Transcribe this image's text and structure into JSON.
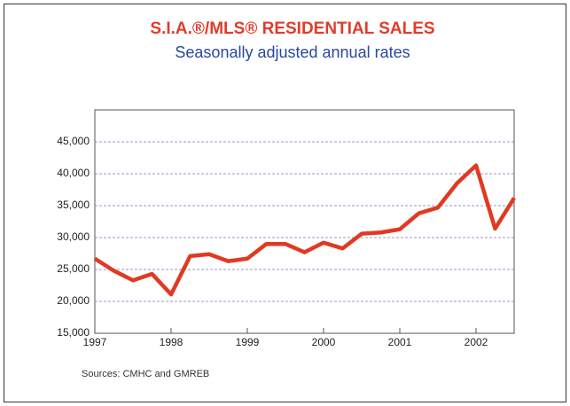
{
  "chart_data": {
    "type": "line",
    "title": "S.I.A.®/MLS® RESIDENTIAL SALES",
    "subtitle": "Seasonally adjusted annual rates",
    "source": "Sources: CMHC and GMREB",
    "x": [
      1997,
      1997.25,
      1997.5,
      1997.75,
      1998,
      1998.25,
      1998.5,
      1998.75,
      1999,
      1999.25,
      1999.5,
      1999.75,
      2000,
      2000.25,
      2000.5,
      2000.75,
      2001,
      2001.25,
      2001.5,
      2001.75,
      2002,
      2002.25,
      2002.5
    ],
    "values": [
      26700,
      24800,
      23300,
      24300,
      21100,
      27100,
      27400,
      26300,
      26700,
      29000,
      29000,
      27700,
      29200,
      28300,
      30600,
      30800,
      31300,
      33800,
      34700,
      38500,
      41300,
      31400,
      36200
    ],
    "color": "#e03a22",
    "xlim": [
      1997,
      2002.5
    ],
    "xticks": [
      1997,
      1998,
      1999,
      2000,
      2001,
      2002
    ],
    "ylim": [
      15000,
      50000
    ],
    "yticks": [
      {
        "value": 15000,
        "label": "15,000"
      },
      {
        "value": 20000,
        "label": "20,000"
      },
      {
        "value": 25000,
        "label": "25,000"
      },
      {
        "value": 30000,
        "label": "30,000"
      },
      {
        "value": 35000,
        "label": "35,000"
      },
      {
        "value": 40000,
        "label": "40,000"
      },
      {
        "value": 45000,
        "label": "45,000"
      }
    ],
    "grid": true
  }
}
